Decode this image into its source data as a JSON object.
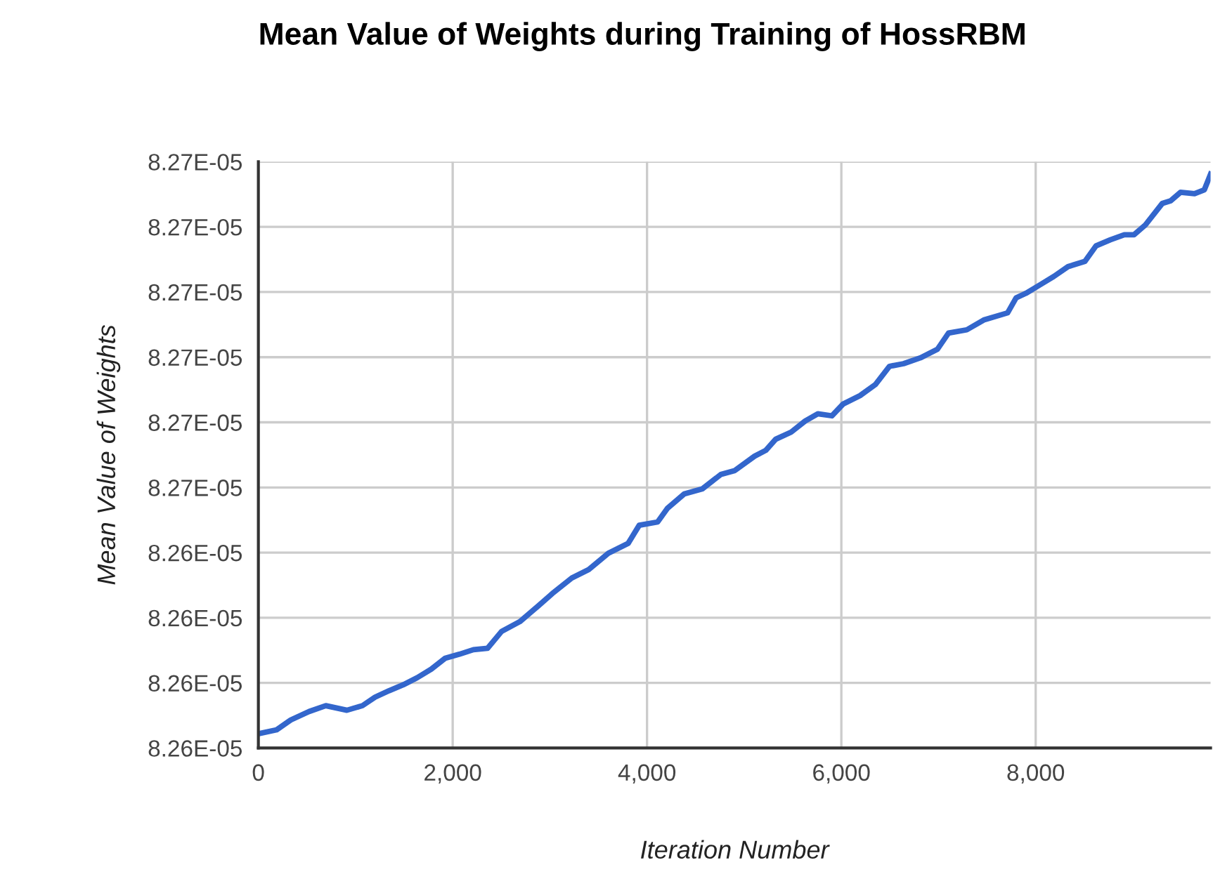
{
  "chart_data": {
    "type": "line",
    "title": "Mean Value of Weights during Training of HossRBM",
    "xlabel": "Iteration Number",
    "ylabel": "Mean Value of Weights",
    "series": [
      {
        "color": "#3366cc",
        "x": [
          0,
          188,
          333,
          521,
          694,
          911,
          1071,
          1201,
          1345,
          1490,
          1635,
          1779,
          1924,
          2069,
          2213,
          2358,
          2503,
          2691,
          2879,
          3024,
          3226,
          3400,
          3602,
          3805,
          3920,
          4109,
          4210,
          4383,
          4571,
          4760,
          4904,
          5107,
          5223,
          5324,
          5483,
          5628,
          5758,
          5903,
          6018,
          6192,
          6351,
          6496,
          6640,
          6814,
          6988,
          7103,
          7291,
          7465,
          7711,
          7798,
          7899,
          8044,
          8188,
          8333,
          8507,
          8622,
          8767,
          8912,
          9013,
          9129,
          9303,
          9389,
          9490,
          9635,
          9736,
          9800
        ],
        "values": [
          8.26172e-05,
          8.26178e-05,
          8.26193e-05,
          8.26206e-05,
          8.26215e-05,
          8.26208e-05,
          8.26215e-05,
          8.26228e-05,
          8.26238e-05,
          8.26247e-05,
          8.26258e-05,
          8.26271e-05,
          8.26288e-05,
          8.26294e-05,
          8.26301e-05,
          8.26303e-05,
          8.26329e-05,
          8.26344e-05,
          8.26368e-05,
          8.26387e-05,
          8.26411e-05,
          8.26424e-05,
          8.26449e-05,
          8.26464e-05,
          8.26492e-05,
          8.26497e-05,
          8.26518e-05,
          8.2654e-05,
          8.26548e-05,
          8.2657e-05,
          8.26576e-05,
          8.26598e-05,
          8.26607e-05,
          8.26624e-05,
          8.26635e-05,
          8.26652e-05,
          8.26663e-05,
          8.2666e-05,
          8.26678e-05,
          8.26691e-05,
          8.26708e-05,
          8.26736e-05,
          8.2674e-05,
          8.26749e-05,
          8.26762e-05,
          8.26787e-05,
          8.26792e-05,
          8.26807e-05,
          8.26818e-05,
          8.26841e-05,
          8.26848e-05,
          8.26861e-05,
          8.26874e-05,
          8.26889e-05,
          8.26897e-05,
          8.26921e-05,
          8.2693e-05,
          8.26938e-05,
          8.26938e-05,
          8.26953e-05,
          8.26986e-05,
          8.2699e-05,
          8.27003e-05,
          8.27001e-05,
          8.27007e-05,
          8.27031e-05
        ]
      }
    ],
    "xlim": [
      0,
      9800
    ],
    "xticks": [
      0,
      {
        "value": 2000,
        "label": "2,000"
      },
      {
        "value": 4000,
        "label": "4,000"
      },
      {
        "value": 6000,
        "label": "6,000"
      },
      {
        "value": 8000,
        "label": "8,000"
      }
    ],
    "ylim": [
      8.2615e-05,
      8.2705e-05
    ],
    "yticks": [
      {
        "value": 8.2615e-05,
        "label": "8.26E-05"
      },
      {
        "value": 8.2625e-05,
        "label": "8.26E-05"
      },
      {
        "value": 8.2635e-05,
        "label": "8.26E-05"
      },
      {
        "value": 8.2645e-05,
        "label": "8.26E-05"
      },
      {
        "value": 8.2655e-05,
        "label": "8.27E-05"
      },
      {
        "value": 8.2665e-05,
        "label": "8.27E-05"
      },
      {
        "value": 8.2675e-05,
        "label": "8.27E-05"
      },
      {
        "value": 8.2685e-05,
        "label": "8.27E-05"
      },
      {
        "value": 8.2695e-05,
        "label": "8.27E-05"
      },
      {
        "value": 8.2705e-05,
        "label": "8.27E-05"
      }
    ],
    "grid": true,
    "legend": false,
    "marker": "none",
    "line_style": "solid"
  }
}
